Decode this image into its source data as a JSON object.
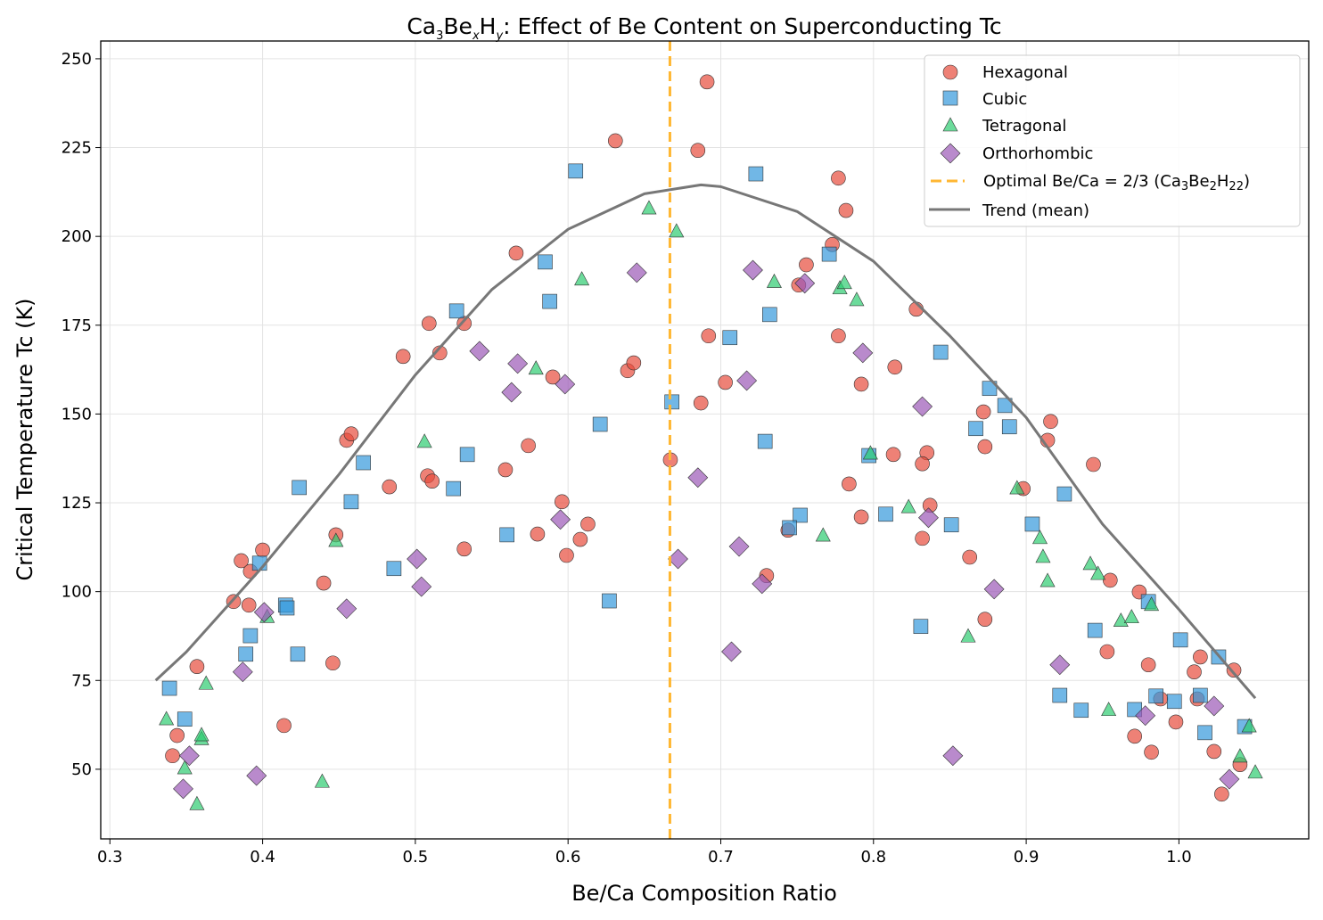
{
  "chart_data": {
    "type": "scatter",
    "title_parts": {
      "a": "Ca",
      "a_sub": "3",
      "b": "Be",
      "b_sub": "x",
      "c": "H",
      "c_sub": "y",
      "rest": ": Effect of Be Content on Superconducting Tc"
    },
    "xlabel": "Be/Ca Composition Ratio",
    "ylabel": "Critical Temperature Tc (K)",
    "xlim": [
      0.294,
      1.085
    ],
    "ylim": [
      30.4,
      255
    ],
    "xticks": [
      0.3,
      0.4,
      0.5,
      0.6,
      0.7,
      0.8,
      0.9,
      1.0
    ],
    "xtick_labels": [
      "0.3",
      "0.4",
      "0.5",
      "0.6",
      "0.7",
      "0.8",
      "0.9",
      "1.0"
    ],
    "yticks": [
      50,
      75,
      100,
      125,
      150,
      175,
      200,
      225,
      250
    ],
    "ytick_labels": [
      "50",
      "75",
      "100",
      "125",
      "150",
      "175",
      "200",
      "225",
      "250"
    ],
    "grid": true,
    "legend_position": "top-right",
    "series": [
      {
        "name": "Hexagonal",
        "marker": "circle",
        "color": "#e74c3c",
        "points": [
          [
            0.341,
            53.8
          ],
          [
            0.344,
            59.5
          ],
          [
            0.357,
            78.9
          ],
          [
            0.381,
            97.2
          ],
          [
            0.386,
            108.7
          ],
          [
            0.391,
            96.2
          ],
          [
            0.392,
            105.7
          ],
          [
            0.4,
            111.7
          ],
          [
            0.414,
            62.3
          ],
          [
            0.44,
            102.4
          ],
          [
            0.446,
            79.9
          ],
          [
            0.448,
            116.0
          ],
          [
            0.455,
            142.6
          ],
          [
            0.458,
            144.4
          ],
          [
            0.483,
            129.5
          ],
          [
            0.492,
            166.2
          ],
          [
            0.508,
            132.6
          ],
          [
            0.509,
            175.5
          ],
          [
            0.511,
            131.1
          ],
          [
            0.516,
            167.2
          ],
          [
            0.532,
            175.5
          ],
          [
            0.532,
            112.0
          ],
          [
            0.559,
            134.3
          ],
          [
            0.566,
            195.3
          ],
          [
            0.574,
            141.1
          ],
          [
            0.58,
            116.2
          ],
          [
            0.599,
            110.2
          ],
          [
            0.59,
            160.4
          ],
          [
            0.596,
            125.3
          ],
          [
            0.608,
            114.7
          ],
          [
            0.613,
            119.0
          ],
          [
            0.631,
            226.9
          ],
          [
            0.639,
            162.2
          ],
          [
            0.643,
            164.4
          ],
          [
            0.667,
            137.1
          ],
          [
            0.685,
            224.2
          ],
          [
            0.687,
            153.1
          ],
          [
            0.691,
            243.5
          ],
          [
            0.692,
            172.0
          ],
          [
            0.703,
            158.9
          ],
          [
            0.73,
            104.5
          ],
          [
            0.744,
            117.3
          ],
          [
            0.751,
            186.3
          ],
          [
            0.756,
            192.0
          ],
          [
            0.773,
            197.7
          ],
          [
            0.777,
            216.4
          ],
          [
            0.777,
            172.0
          ],
          [
            0.782,
            207.3
          ],
          [
            0.784,
            130.3
          ],
          [
            0.792,
            158.4
          ],
          [
            0.792,
            121.0
          ],
          [
            0.813,
            138.6
          ],
          [
            0.814,
            163.2
          ],
          [
            0.828,
            179.5
          ],
          [
            0.832,
            115.0
          ],
          [
            0.835,
            139.1
          ],
          [
            0.832,
            136.0
          ],
          [
            0.837,
            124.3
          ],
          [
            0.863,
            109.7
          ],
          [
            0.872,
            150.6
          ],
          [
            0.873,
            140.8
          ],
          [
            0.873,
            92.2
          ],
          [
            0.898,
            129.0
          ],
          [
            0.914,
            142.6
          ],
          [
            0.916,
            147.9
          ],
          [
            0.944,
            135.8
          ],
          [
            0.955,
            103.2
          ],
          [
            0.953,
            83.1
          ],
          [
            0.971,
            59.3
          ],
          [
            0.974,
            99.9
          ],
          [
            0.98,
            79.4
          ],
          [
            0.982,
            54.8
          ],
          [
            0.988,
            69.8
          ],
          [
            0.998,
            63.3
          ],
          [
            1.01,
            77.4
          ],
          [
            1.014,
            81.6
          ],
          [
            1.012,
            69.8
          ],
          [
            1.023,
            55.0
          ],
          [
            1.028,
            43.0
          ],
          [
            1.036,
            77.9
          ],
          [
            1.04,
            51.3
          ]
        ]
      },
      {
        "name": "Cubic",
        "marker": "square",
        "color": "#3498db",
        "points": [
          [
            0.339,
            72.8
          ],
          [
            0.349,
            64.1
          ],
          [
            0.389,
            82.4
          ],
          [
            0.392,
            87.6
          ],
          [
            0.398,
            108.0
          ],
          [
            0.415,
            96.2
          ],
          [
            0.416,
            95.4
          ],
          [
            0.423,
            82.4
          ],
          [
            0.424,
            129.3
          ],
          [
            0.458,
            125.3
          ],
          [
            0.466,
            136.3
          ],
          [
            0.486,
            106.5
          ],
          [
            0.525,
            129.0
          ],
          [
            0.527,
            179.0
          ],
          [
            0.534,
            138.6
          ],
          [
            0.56,
            116.0
          ],
          [
            0.585,
            192.8
          ],
          [
            0.588,
            181.7
          ],
          [
            0.605,
            218.4
          ],
          [
            0.621,
            147.1
          ],
          [
            0.627,
            97.4
          ],
          [
            0.668,
            153.4
          ],
          [
            0.706,
            171.5
          ],
          [
            0.723,
            217.6
          ],
          [
            0.729,
            142.3
          ],
          [
            0.732,
            178.0
          ],
          [
            0.752,
            121.5
          ],
          [
            0.745,
            118.0
          ],
          [
            0.771,
            195.0
          ],
          [
            0.797,
            138.3
          ],
          [
            0.808,
            121.8
          ],
          [
            0.831,
            90.2
          ],
          [
            0.851,
            118.8
          ],
          [
            0.844,
            167.4
          ],
          [
            0.867,
            145.9
          ],
          [
            0.876,
            157.2
          ],
          [
            0.886,
            152.4
          ],
          [
            0.889,
            146.4
          ],
          [
            0.904,
            119.0
          ],
          [
            0.922,
            70.8
          ],
          [
            0.925,
            127.5
          ],
          [
            0.936,
            66.6
          ],
          [
            0.945,
            89.1
          ],
          [
            0.971,
            66.8
          ],
          [
            0.98,
            97.2
          ],
          [
            0.985,
            70.6
          ],
          [
            0.997,
            69.1
          ],
          [
            1.001,
            86.4
          ],
          [
            1.014,
            70.8
          ],
          [
            1.017,
            60.3
          ],
          [
            1.026,
            81.6
          ],
          [
            1.043,
            62.0
          ]
        ]
      },
      {
        "name": "Tetragonal",
        "marker": "triangle",
        "color": "#2ecc71",
        "points": [
          [
            0.337,
            64.0
          ],
          [
            0.349,
            50.2
          ],
          [
            0.357,
            40.1
          ],
          [
            0.36,
            58.4
          ],
          [
            0.36,
            59.5
          ],
          [
            0.363,
            74.0
          ],
          [
            0.403,
            92.8
          ],
          [
            0.439,
            46.4
          ],
          [
            0.448,
            114.2
          ],
          [
            0.506,
            142.1
          ],
          [
            0.579,
            162.7
          ],
          [
            0.609,
            187.8
          ],
          [
            0.653,
            207.8
          ],
          [
            0.671,
            201.3
          ],
          [
            0.735,
            187.1
          ],
          [
            0.767,
            115.7
          ],
          [
            0.778,
            185.3
          ],
          [
            0.781,
            186.8
          ],
          [
            0.789,
            182.0
          ],
          [
            0.798,
            138.8
          ],
          [
            0.823,
            123.7
          ],
          [
            0.862,
            87.3
          ],
          [
            0.894,
            129.0
          ],
          [
            0.909,
            115.0
          ],
          [
            0.911,
            109.7
          ],
          [
            0.914,
            102.9
          ],
          [
            0.942,
            107.7
          ],
          [
            0.947,
            104.9
          ],
          [
            0.954,
            66.6
          ],
          [
            0.962,
            91.7
          ],
          [
            0.969,
            92.7
          ],
          [
            0.982,
            96.2
          ],
          [
            1.04,
            53.5
          ],
          [
            1.046,
            62.0
          ],
          [
            1.05,
            49.0
          ]
        ]
      },
      {
        "name": "Orthorhombic",
        "marker": "diamond",
        "color": "#9b59b6",
        "points": [
          [
            0.348,
            44.5
          ],
          [
            0.352,
            53.8
          ],
          [
            0.387,
            77.4
          ],
          [
            0.396,
            48.2
          ],
          [
            0.401,
            94.2
          ],
          [
            0.455,
            95.2
          ],
          [
            0.501,
            109.2
          ],
          [
            0.504,
            101.4
          ],
          [
            0.542,
            167.7
          ],
          [
            0.563,
            156.1
          ],
          [
            0.567,
            164.2
          ],
          [
            0.595,
            120.3
          ],
          [
            0.598,
            158.4
          ],
          [
            0.645,
            189.8
          ],
          [
            0.685,
            132.1
          ],
          [
            0.672,
            109.2
          ],
          [
            0.707,
            83.1
          ],
          [
            0.712,
            112.7
          ],
          [
            0.717,
            159.4
          ],
          [
            0.721,
            190.5
          ],
          [
            0.727,
            102.2
          ],
          [
            0.755,
            186.8
          ],
          [
            0.793,
            167.2
          ],
          [
            0.832,
            152.1
          ],
          [
            0.836,
            120.8
          ],
          [
            0.852,
            53.8
          ],
          [
            0.879,
            100.7
          ],
          [
            0.922,
            79.4
          ],
          [
            0.978,
            65.1
          ],
          [
            1.023,
            67.8
          ],
          [
            1.033,
            47.2
          ]
        ]
      }
    ],
    "reference_line": {
      "x": 0.6667,
      "style": "dashed",
      "color": "#ffb732",
      "label_parts": {
        "a": "Optimal Be/Ca = 2/3 (Ca",
        "a_sub": "3",
        "b": "Be",
        "b_sub": "2",
        "c": "H",
        "c_sub": "22",
        "d": ")"
      }
    },
    "trend": {
      "name": "Trend (mean)",
      "color": "#777777",
      "x": [
        0.33,
        0.35,
        0.4,
        0.45,
        0.5,
        0.55,
        0.6,
        0.65,
        0.687,
        0.7,
        0.75,
        0.8,
        0.85,
        0.9,
        0.925,
        0.95,
        1.0,
        1.05
      ],
      "y": [
        75,
        83,
        107,
        133,
        161,
        185,
        202,
        212,
        214.5,
        214,
        207,
        193,
        172,
        149,
        134,
        119,
        95,
        70
      ]
    }
  }
}
